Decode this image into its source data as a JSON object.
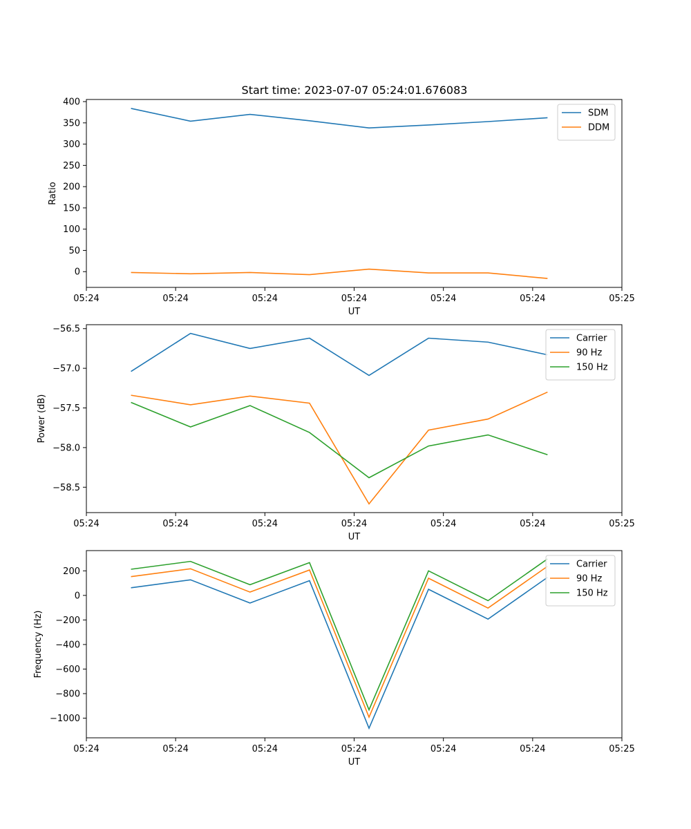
{
  "chart_data": {
    "title": "Start time: 2023-07-07 05:24:01.676083",
    "x": [
      1,
      2,
      3,
      4,
      5,
      6,
      7,
      8
    ],
    "xlim": [
      0.25,
      9.25
    ],
    "xticks": [
      0.25,
      1.75,
      3.25,
      4.75,
      6.25,
      7.75,
      9.25
    ],
    "xtick_labels": [
      "05:24",
      "05:24",
      "05:24",
      "05:24",
      "05:24",
      "05:24",
      "05:25"
    ],
    "panels": [
      {
        "type": "line",
        "xlabel": "UT",
        "ylabel": "Ratio",
        "ylim": [
          -37,
          405
        ],
        "yticks": [
          0,
          50,
          100,
          150,
          200,
          250,
          300,
          350,
          400
        ],
        "ytick_labels": [
          "0",
          "50",
          "100",
          "150",
          "200",
          "250",
          "300",
          "350",
          "400"
        ],
        "legend": "top-right",
        "series": [
          {
            "name": "SDM",
            "color": "#1f77b4",
            "values": [
              384,
              354,
              370,
              355,
              338,
              345,
              353,
              362
            ]
          },
          {
            "name": "DDM",
            "color": "#ff7f0e",
            "values": [
              -2,
              -5,
              -2,
              -7,
              6,
              -3,
              -3,
              -16
            ]
          }
        ]
      },
      {
        "type": "line",
        "xlabel": "UT",
        "ylabel": "Power (dB)",
        "ylim": [
          -58.82,
          -56.45
        ],
        "yticks": [
          -58.5,
          -58.0,
          -57.5,
          -57.0,
          -56.5
        ],
        "ytick_labels": [
          "−58.5",
          "−58.0",
          "−57.5",
          "−57.0",
          "−56.5"
        ],
        "legend": "top-right",
        "series": [
          {
            "name": "Carrier",
            "color": "#1f77b4",
            "values": [
              -57.04,
              -56.56,
              -56.75,
              -56.62,
              -57.09,
              -56.62,
              -56.67,
              -56.83
            ]
          },
          {
            "name": "90 Hz",
            "color": "#ff7f0e",
            "values": [
              -57.34,
              -57.46,
              -57.35,
              -57.44,
              -58.71,
              -57.78,
              -57.64,
              -57.3
            ]
          },
          {
            "name": "150 Hz",
            "color": "#2ca02c",
            "values": [
              -57.43,
              -57.74,
              -57.47,
              -57.81,
              -58.38,
              -57.98,
              -57.84,
              -58.09
            ]
          }
        ]
      },
      {
        "type": "line",
        "xlabel": "UT",
        "ylabel": "Frequency (Hz)",
        "ylim": [
          -1160,
          365
        ],
        "yticks": [
          -1000,
          -800,
          -600,
          -400,
          -200,
          0,
          200
        ],
        "ytick_labels": [
          "−1000",
          "−800",
          "−600",
          "−400",
          "−200",
          "0",
          "200"
        ],
        "legend": "top-right",
        "series": [
          {
            "name": "Carrier",
            "color": "#1f77b4",
            "values": [
              62,
              127,
              -62,
              120,
              -1082,
              50,
              -193,
              147
            ]
          },
          {
            "name": "90 Hz",
            "color": "#ff7f0e",
            "values": [
              153,
              217,
              27,
              207,
              -992,
              140,
              -103,
              237
            ]
          },
          {
            "name": "150 Hz",
            "color": "#2ca02c",
            "values": [
              213,
              277,
              87,
              267,
              -932,
              200,
              -43,
              297
            ]
          }
        ]
      }
    ]
  }
}
